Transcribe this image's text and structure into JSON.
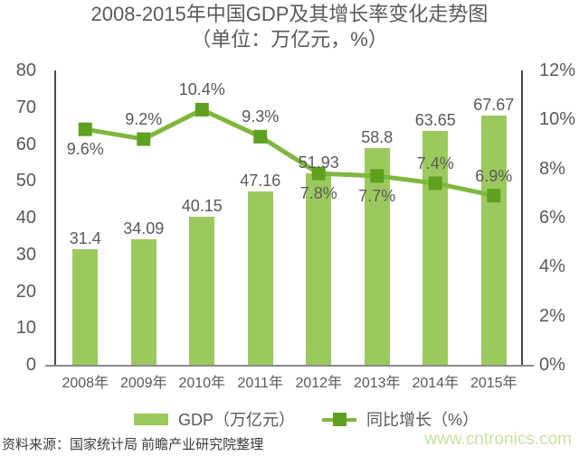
{
  "title": {
    "line1": "2008-2015年中国GDP及其增长率变化走势图",
    "line2": "（单位：万亿元，%）"
  },
  "legend": {
    "gdp_label": "GDP（万亿元）",
    "growth_label": "同比增长（%）"
  },
  "source": "资料来源：国家统计局 前瞻产业研究院整理",
  "watermark": "www.cntronics.com",
  "colors": {
    "bar": "#9CC95E",
    "line": "#7FB73D",
    "marker": "#5FA01F",
    "axis_text": "#595959",
    "axis_line": "#4a4a4a",
    "source_text": "#3c3c3c",
    "watermark": "#c6e3a2"
  },
  "chart_data": {
    "type": "bar+line",
    "title": "2008-2015年中国GDP及其增长率变化走势图（单位：万亿元，%）",
    "categories": [
      "2008年",
      "2009年",
      "2010年",
      "2011年",
      "2012年",
      "2013年",
      "2014年",
      "2015年"
    ],
    "series": [
      {
        "name": "GDP（万亿元）",
        "type": "bar",
        "axis": "left",
        "values": [
          31.4,
          34.09,
          40.15,
          47.16,
          51.93,
          58.8,
          63.65,
          67.67
        ],
        "labels": [
          "31.4",
          "34.09",
          "40.15",
          "47.16",
          "51.93",
          "58.8",
          "63.65",
          "67.67"
        ]
      },
      {
        "name": "同比增长（%）",
        "type": "line",
        "axis": "right",
        "values": [
          9.6,
          9.2,
          10.4,
          9.3,
          7.8,
          7.7,
          7.4,
          6.9
        ],
        "labels": [
          "9.6%",
          "9.2%",
          "10.4%",
          "9.3%",
          "7.8%",
          "7.7%",
          "7.4%",
          "6.9%"
        ],
        "label_positions": [
          "below",
          "above",
          "above",
          "above",
          "below",
          "below",
          "above",
          "above"
        ]
      }
    ],
    "left_axis": {
      "min": 0,
      "max": 80,
      "step": 10,
      "ticks": [
        "80",
        "70",
        "60",
        "50",
        "40",
        "30",
        "20",
        "10",
        "0"
      ]
    },
    "right_axis": {
      "min": 0,
      "max": 12,
      "step": 2,
      "ticks": [
        "12%",
        "10%",
        "8%",
        "6%",
        "4%",
        "2%",
        "0%"
      ]
    },
    "grid": false,
    "legend_position": "bottom"
  }
}
